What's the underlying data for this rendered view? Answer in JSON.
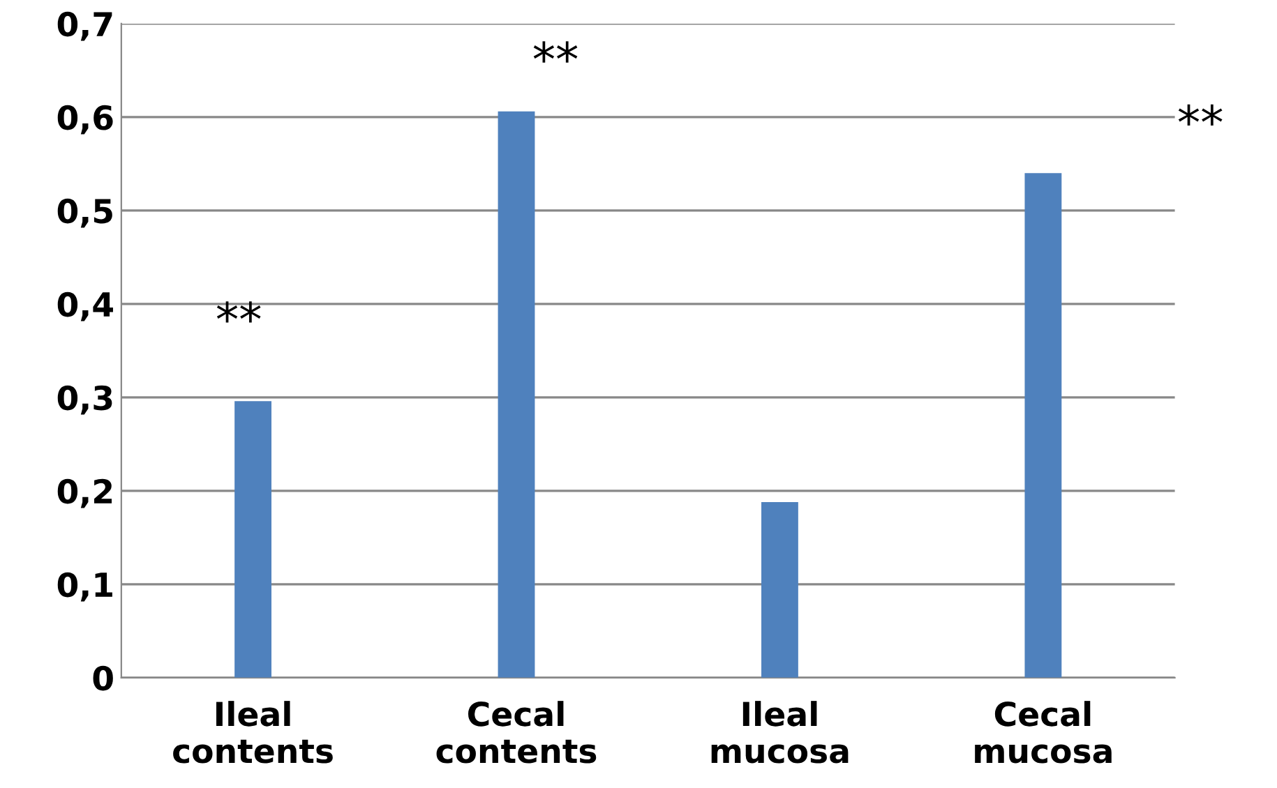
{
  "chart_data": {
    "type": "bar",
    "categories": [
      "Ileal\ncontents",
      "Cecal\ncontents",
      "Ileal\nmucosa",
      "Cecal\nmucosa"
    ],
    "values": [
      0.296,
      0.606,
      0.188,
      0.54
    ],
    "color": "#4f81bd",
    "ylim": [
      0,
      0.7
    ],
    "yticks": [
      {
        "value": 0,
        "label": "0"
      },
      {
        "value": 0.1,
        "label": "0,1"
      },
      {
        "value": 0.2,
        "label": "0,2"
      },
      {
        "value": 0.3,
        "label": "0,3"
      },
      {
        "value": 0.4,
        "label": "0,4"
      },
      {
        "value": 0.5,
        "label": "0,5"
      },
      {
        "value": 0.6,
        "label": "0,6"
      },
      {
        "value": 0.7,
        "label": "0,7"
      }
    ],
    "grid": "y",
    "legend": false,
    "annotations": [
      "**",
      "**",
      "**"
    ]
  }
}
